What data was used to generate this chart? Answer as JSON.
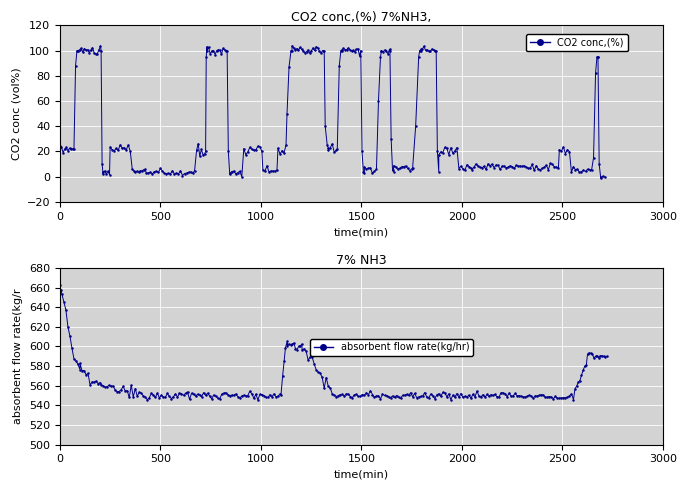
{
  "title1": "CO2 conc,(%) 7%NH3,",
  "title2": "7% NH3",
  "xlabel": "time(min)",
  "ylabel1": "CO2 conc (vol%)",
  "ylabel2": "absorbent flow rate(kg/r",
  "legend1": "CO2 conc,(%)",
  "legend2": "absorbent flow rate(kg/hr)",
  "xlim": [
    0,
    3000
  ],
  "ylim1": [
    -20,
    120
  ],
  "ylim2": [
    500,
    680
  ],
  "yticks1": [
    -20,
    0,
    20,
    40,
    60,
    80,
    100,
    120
  ],
  "yticks2": [
    500,
    520,
    540,
    560,
    580,
    600,
    620,
    640,
    660,
    680
  ],
  "xticks": [
    0,
    500,
    1000,
    1500,
    2000,
    2500,
    3000
  ],
  "bg_color": "#d3d3d3",
  "line_color": "#00008b",
  "fig_bg": "#ffffff",
  "title_fontsize": 9,
  "axis_fontsize": 8,
  "tick_fontsize": 8,
  "legend_fontsize": 7
}
